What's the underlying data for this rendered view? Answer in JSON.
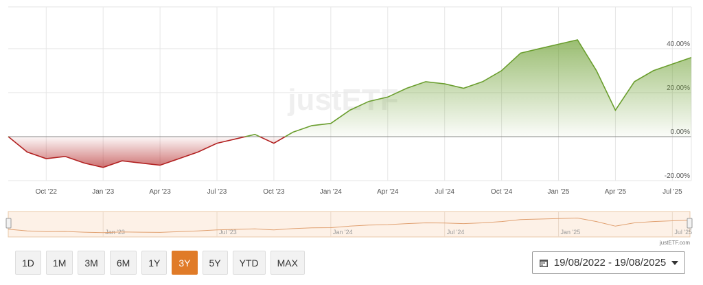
{
  "chart_data": {
    "type": "line",
    "x": [
      "2022-08",
      "2022-09",
      "2022-10",
      "2022-11",
      "2022-12",
      "2023-01",
      "2023-02",
      "2023-03",
      "2023-04",
      "2023-05",
      "2023-06",
      "2023-07",
      "2023-08",
      "2023-09",
      "2023-10",
      "2023-11",
      "2023-12",
      "2024-01",
      "2024-02",
      "2024-03",
      "2024-04",
      "2024-05",
      "2024-06",
      "2024-07",
      "2024-08",
      "2024-09",
      "2024-10",
      "2024-11",
      "2024-12",
      "2025-01",
      "2025-02",
      "2025-03",
      "2025-04",
      "2025-05",
      "2025-06",
      "2025-07",
      "2025-08"
    ],
    "values": [
      0,
      -7,
      -10,
      -9,
      -12,
      -14,
      -11,
      -12,
      -13,
      -10,
      -7,
      -3,
      -1,
      1,
      -3,
      2,
      5,
      6,
      12,
      16,
      18,
      22,
      25,
      24,
      22,
      25,
      30,
      38,
      40,
      42,
      44,
      30,
      12,
      25,
      30,
      33,
      36
    ],
    "positive_color": "#6a9e2e",
    "negative_color": "#b22222",
    "xlim": [
      "2022-08",
      "2025-08"
    ],
    "xticks": [
      {
        "value": "2022-10",
        "label": "Oct '22"
      },
      {
        "value": "2023-01",
        "label": "Jan '23"
      },
      {
        "value": "2023-04",
        "label": "Apr '23"
      },
      {
        "value": "2023-07",
        "label": "Jul '23"
      },
      {
        "value": "2023-10",
        "label": "Oct '23"
      },
      {
        "value": "2024-01",
        "label": "Jan '24"
      },
      {
        "value": "2024-04",
        "label": "Apr '24"
      },
      {
        "value": "2024-07",
        "label": "Jul '24"
      },
      {
        "value": "2024-10",
        "label": "Oct '24"
      },
      {
        "value": "2025-01",
        "label": "Jan '25"
      },
      {
        "value": "2025-04",
        "label": "Apr '25"
      },
      {
        "value": "2025-07",
        "label": "Jul '25"
      }
    ],
    "ylim": [
      -20,
      59
    ],
    "yticks": [
      {
        "value": -20,
        "label": "-20.00%"
      },
      {
        "value": 0,
        "label": "0.00%"
      },
      {
        "value": 20,
        "label": "20.00%"
      },
      {
        "value": 40,
        "label": "40.00%"
      }
    ],
    "grid": true,
    "watermark": "justETF",
    "navigator": {
      "xticks": [
        {
          "value": "2023-01",
          "label": "Jan '23"
        },
        {
          "value": "2023-07",
          "label": "Jul '23"
        },
        {
          "value": "2024-01",
          "label": "Jan '24"
        },
        {
          "value": "2024-07",
          "label": "Jul '24"
        },
        {
          "value": "2025-01",
          "label": "Jan '25"
        },
        {
          "value": "2025-07",
          "label": "Jul '25"
        }
      ],
      "color": "#e0a070"
    },
    "credit": "justETF.com"
  },
  "range_buttons": [
    "1D",
    "1M",
    "3M",
    "6M",
    "1Y",
    "3Y",
    "5Y",
    "YTD",
    "MAX"
  ],
  "active_range_index": 5,
  "date_range": "19/08/2022 - 19/08/2025"
}
